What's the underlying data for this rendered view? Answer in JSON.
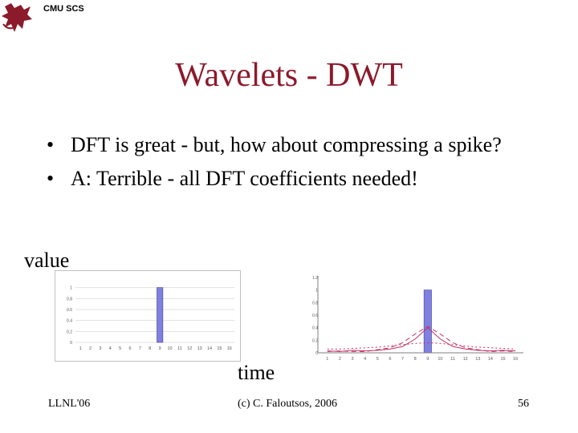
{
  "header": {
    "org_label": "CMU SCS",
    "logo_icon": "griffin-logo-icon",
    "logo_color": "#8b1a2b"
  },
  "slide": {
    "title": "Wavelets - DWT",
    "title_color": "#8b1a2b",
    "bullets": [
      "DFT is great - but, how about compressing a spike?",
      "A: Terrible - all DFT coefficients needed!"
    ]
  },
  "labels": {
    "y": "value",
    "x": "time"
  },
  "footer": {
    "left": "LLNL'06",
    "center": "(c) C. Faloutsos, 2006",
    "right": "56"
  },
  "chart_data": [
    {
      "type": "bar",
      "x": [
        1,
        2,
        3,
        4,
        5,
        6,
        7,
        8,
        9,
        10,
        11,
        12,
        13,
        14,
        15,
        16
      ],
      "values": [
        0,
        0,
        0,
        0,
        0,
        0,
        0,
        0,
        1,
        0,
        0,
        0,
        0,
        0,
        0,
        0
      ],
      "xticks": [
        "1",
        "2",
        "3",
        "4",
        "5",
        "6",
        "7",
        "8",
        "9",
        "10",
        "11",
        "12",
        "13",
        "14",
        "15",
        "16"
      ],
      "yticks": [
        "0",
        "0.2",
        "0.4",
        "0.6",
        "0.8",
        "1"
      ],
      "ylim": [
        0,
        1.2
      ],
      "bar_color": "#8080e0"
    },
    {
      "type": "bar",
      "x": [
        1,
        2,
        3,
        4,
        5,
        6,
        7,
        8,
        9,
        10,
        11,
        12,
        13,
        14,
        15,
        16
      ],
      "values": [
        0,
        0,
        0,
        0,
        0,
        0,
        0,
        0,
        1,
        0,
        0,
        0,
        0,
        0,
        0,
        0
      ],
      "xticks": [
        "1",
        "2",
        "3",
        "4",
        "5",
        "6",
        "7",
        "8",
        "9",
        "10",
        "11",
        "12",
        "13",
        "14",
        "15",
        "16"
      ],
      "yticks": [
        "0",
        "0.2",
        "0.4",
        "0.6",
        "0.8",
        "1",
        "1.2"
      ],
      "ylim": [
        0,
        1.2
      ],
      "bar_color": "#8080e0",
      "series": [
        {
          "values": [
            0.03,
            0.02,
            0.04,
            0.03,
            0.04,
            0.06,
            0.1,
            0.22,
            0.4,
            0.22,
            0.1,
            0.06,
            0.04,
            0.03,
            0.04,
            0.03
          ],
          "color": "#c03060",
          "dash": ""
        },
        {
          "values": [
            0.02,
            0.03,
            0.02,
            0.02,
            0.05,
            0.08,
            0.16,
            0.3,
            0.42,
            0.3,
            0.16,
            0.08,
            0.05,
            0.02,
            0.03,
            0.02
          ],
          "color": "#c03060",
          "dash": "6,4"
        },
        {
          "values": [
            0.06,
            0.06,
            0.07,
            0.08,
            0.09,
            0.11,
            0.13,
            0.15,
            0.16,
            0.15,
            0.13,
            0.11,
            0.09,
            0.08,
            0.07,
            0.06
          ],
          "color": "#c03060",
          "dash": "2,3"
        }
      ]
    }
  ]
}
